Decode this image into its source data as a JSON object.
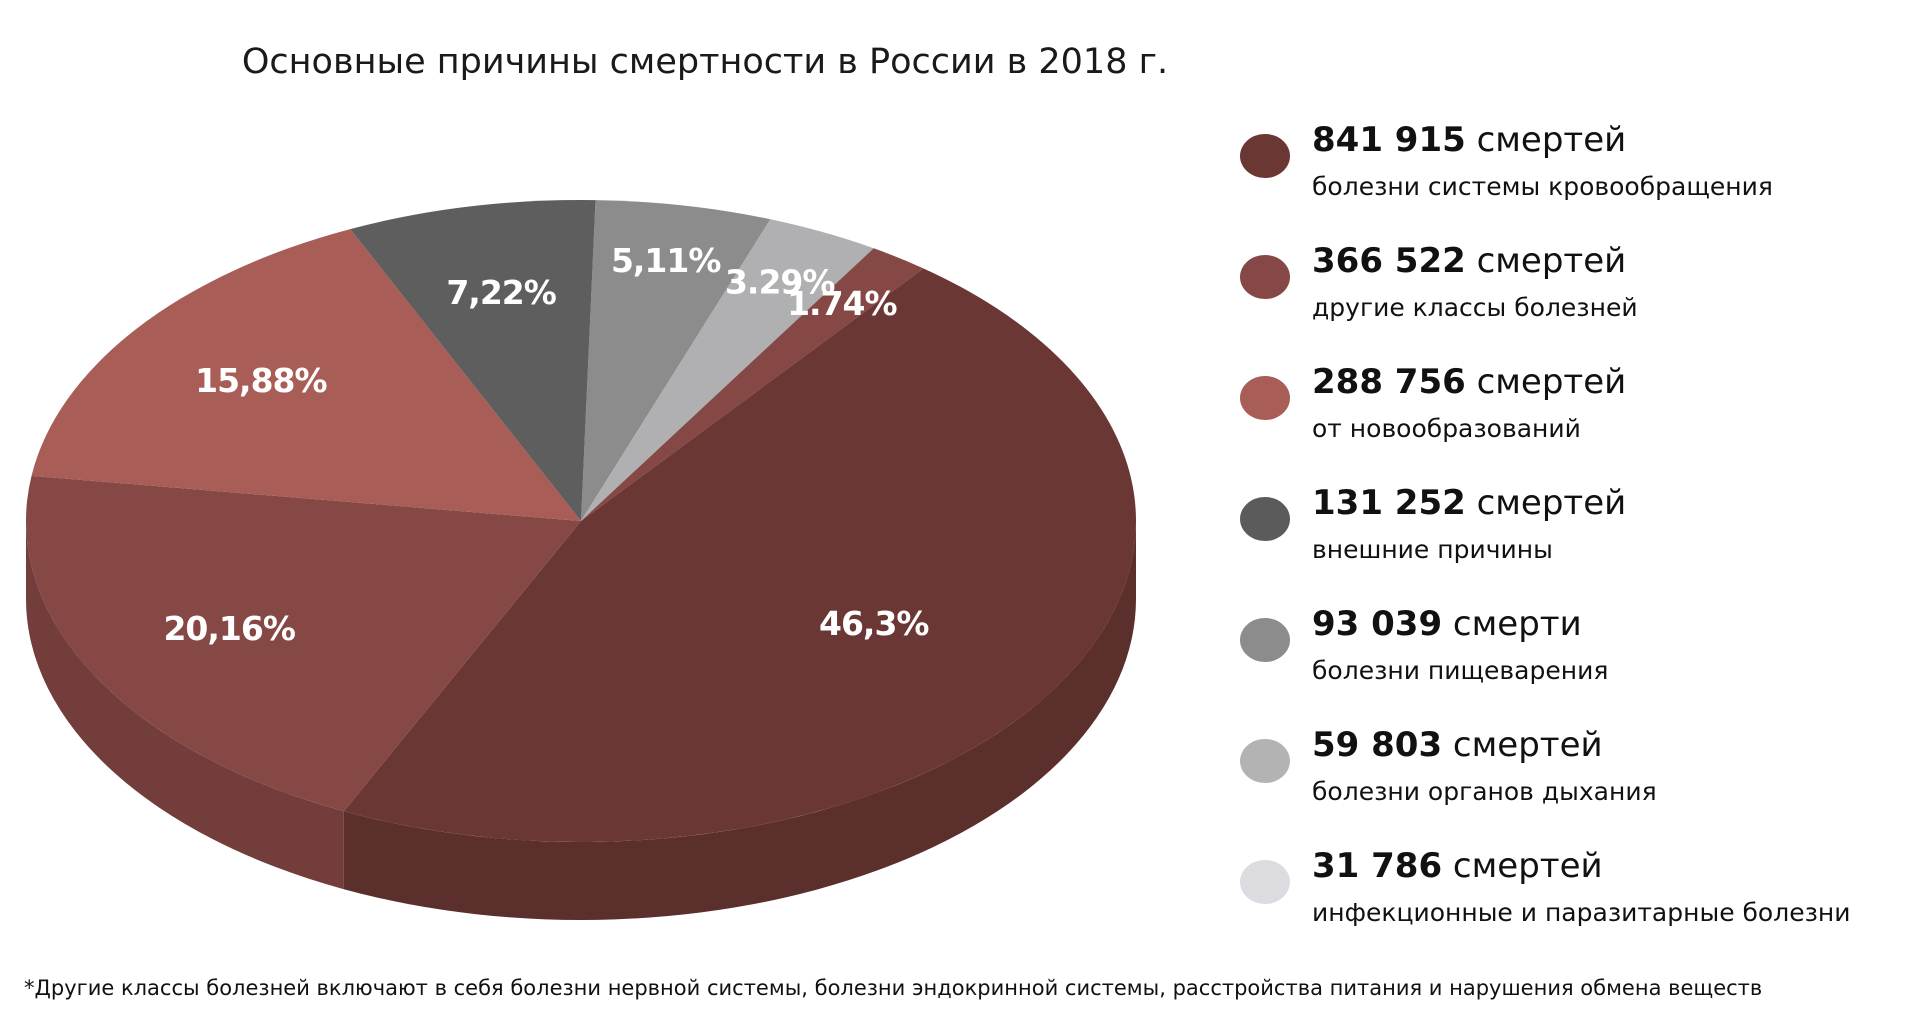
{
  "chart_data": {
    "type": "pie",
    "title": "Основные причины смертности в России в 2018 г.",
    "slices": [
      {
        "label": "5,11%",
        "value": 5.11,
        "color": "#8c8c8c"
      },
      {
        "label": "3.29%",
        "value": 3.29,
        "color": "#b0b0b2"
      },
      {
        "label": "1.74%",
        "value": 1.74,
        "color": "#864845"
      },
      {
        "label": "46,3%",
        "value": 46.3,
        "color": "#6a3734"
      },
      {
        "label": "20,16%",
        "value": 20.16,
        "color": "#864845"
      },
      {
        "label": "15,88%",
        "value": 15.88,
        "color": "#a85d57"
      },
      {
        "label": "7,22%",
        "value": 7.22,
        "color": "#5e5e5e"
      }
    ],
    "style": "3d",
    "legend_placement": "right",
    "legend": [
      {
        "count": "841 915",
        "unit": "смертей",
        "description": "болезни системы кровообращения",
        "color": "#6a3733"
      },
      {
        "count": "366 522",
        "unit": "смертей",
        "description": "другие классы болезней",
        "color": "#864846"
      },
      {
        "count": "288 756",
        "unit": "смертей",
        "description": "от новообразований",
        "color": "#a85d57"
      },
      {
        "count": "131 252",
        "unit": "смертей",
        "description": "внешние причины",
        "color": "#5b5b5b"
      },
      {
        "count": "93 039",
        "unit": "смерти",
        "description": "болезни пищеварения",
        "color": "#8c8c8c"
      },
      {
        "count": "59 803",
        "unit": "смертей",
        "description": "болезни органов дыхания",
        "color": "#b3b3b3"
      },
      {
        "count": "31 786",
        "unit": "смертей",
        "description": "инфекционные и паразитарные болезни",
        "color": "#dcdce0"
      }
    ],
    "footnote": "*Другие классы болезней включают в себя болезни нервной системы, болезни эндокринной системы, расстройства питания и нарушения обмена веществ"
  }
}
